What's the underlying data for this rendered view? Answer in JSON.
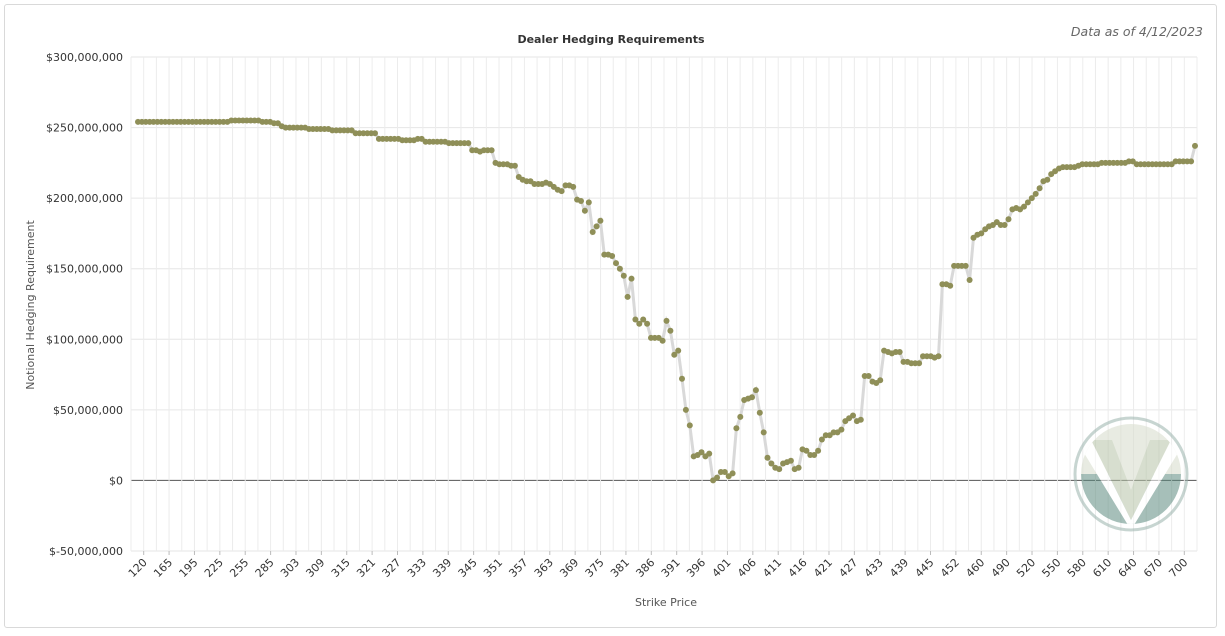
{
  "as_of_label": "Data as of 4/12/2023",
  "chart_data": {
    "type": "line",
    "title": "Dealer Hedging Requirements",
    "xlabel": "Strike Price",
    "ylabel": "Notional Hedging Requirement",
    "ylim": [
      -50000000,
      300000000
    ],
    "y_ticks": [
      300000000,
      250000000,
      200000000,
      150000000,
      100000000,
      50000000,
      0,
      -50000000
    ],
    "y_tick_labels": [
      "$300,000,000",
      "$250,000,000",
      "$200,000,000",
      "$150,000,000",
      "$100,000,000",
      "$50,000,000",
      "$0",
      "$-50,000,000"
    ],
    "x_tick_labels": [
      "120",
      "165",
      "195",
      "225",
      "255",
      "285",
      "303",
      "309",
      "315",
      "321",
      "327",
      "333",
      "339",
      "345",
      "351",
      "357",
      "363",
      "369",
      "375",
      "381",
      "386",
      "391",
      "396",
      "401",
      "406",
      "411",
      "416",
      "421",
      "427",
      "433",
      "439",
      "445",
      "452",
      "460",
      "490",
      "520",
      "550",
      "580",
      "610",
      "640",
      "670",
      "700"
    ],
    "grid": true,
    "legend": "none",
    "line_color": "#d9d9d9",
    "marker_color": "#8f8f58",
    "zero_line_color": "#555555",
    "series": [
      {
        "values": [
          254000000,
          254000000,
          254000000,
          254000000,
          254000000,
          254000000,
          254000000,
          254000000,
          254000000,
          254000000,
          254000000,
          254000000,
          254000000,
          254000000,
          254000000,
          254000000,
          254000000,
          254000000,
          254000000,
          254000000,
          254000000,
          254000000,
          254000000,
          254000000,
          255000000,
          255000000,
          255000000,
          255000000,
          255000000,
          255000000,
          255000000,
          255000000,
          254000000,
          254000000,
          254000000,
          253000000,
          253000000,
          251000000,
          250000000,
          250000000,
          250000000,
          250000000,
          250000000,
          250000000,
          249000000,
          249000000,
          249000000,
          249000000,
          249000000,
          249000000,
          248000000,
          248000000,
          248000000,
          248000000,
          248000000,
          248000000,
          246000000,
          246000000,
          246000000,
          246000000,
          246000000,
          246000000,
          242000000,
          242000000,
          242000000,
          242000000,
          242000000,
          242000000,
          241000000,
          241000000,
          241000000,
          241000000,
          242000000,
          242000000,
          240000000,
          240000000,
          240000000,
          240000000,
          240000000,
          240000000,
          239000000,
          239000000,
          239000000,
          239000000,
          239000000,
          239000000,
          234000000,
          234000000,
          233000000,
          234000000,
          234000000,
          234000000,
          225000000,
          224000000,
          224000000,
          224000000,
          223000000,
          223000000,
          215000000,
          213000000,
          212000000,
          212000000,
          210000000,
          210000000,
          210000000,
          211000000,
          210000000,
          208000000,
          206000000,
          205000000,
          209000000,
          209000000,
          208000000,
          199000000,
          198000000,
          191000000,
          197000000,
          176000000,
          180000000,
          184000000,
          160000000,
          160000000,
          159000000,
          154000000,
          150000000,
          145000000,
          130000000,
          143000000,
          114000000,
          111000000,
          114000000,
          111000000,
          101000000,
          101000000,
          101000000,
          99000000,
          113000000,
          106000000,
          89000000,
          92000000,
          72000000,
          50000000,
          39000000,
          17000000,
          18000000,
          20000000,
          17000000,
          19000000,
          0,
          2000000,
          6000000,
          6000000,
          3000000,
          5000000,
          37000000,
          45000000,
          57000000,
          58000000,
          59000000,
          64000000,
          48000000,
          34000000,
          16000000,
          12000000,
          9000000,
          8000000,
          12000000,
          13000000,
          14000000,
          8000000,
          9000000,
          22000000,
          21000000,
          18000000,
          18000000,
          21000000,
          29000000,
          32000000,
          32000000,
          34000000,
          34000000,
          36000000,
          42000000,
          44000000,
          46000000,
          42000000,
          43000000,
          74000000,
          74000000,
          70000000,
          69000000,
          71000000,
          92000000,
          91000000,
          90000000,
          91000000,
          91000000,
          84000000,
          84000000,
          83000000,
          83000000,
          83000000,
          88000000,
          88000000,
          88000000,
          87000000,
          88000000,
          139000000,
          139000000,
          138000000,
          152000000,
          152000000,
          152000000,
          152000000,
          142000000,
          172000000,
          174000000,
          175000000,
          178000000,
          180000000,
          181000000,
          183000000,
          181000000,
          181000000,
          185000000,
          192000000,
          193000000,
          192000000,
          194000000,
          197000000,
          200000000,
          203000000,
          207000000,
          212000000,
          213000000,
          217000000,
          219000000,
          221000000,
          222000000,
          222000000,
          222000000,
          222000000,
          223000000,
          224000000,
          224000000,
          224000000,
          224000000,
          224000000,
          225000000,
          225000000,
          225000000,
          225000000,
          225000000,
          225000000,
          225000000,
          226000000,
          226000000,
          224000000,
          224000000,
          224000000,
          224000000,
          224000000,
          224000000,
          224000000,
          224000000,
          224000000,
          224000000,
          226000000,
          226000000,
          226000000,
          226000000,
          226000000,
          237000000
        ]
      }
    ]
  }
}
